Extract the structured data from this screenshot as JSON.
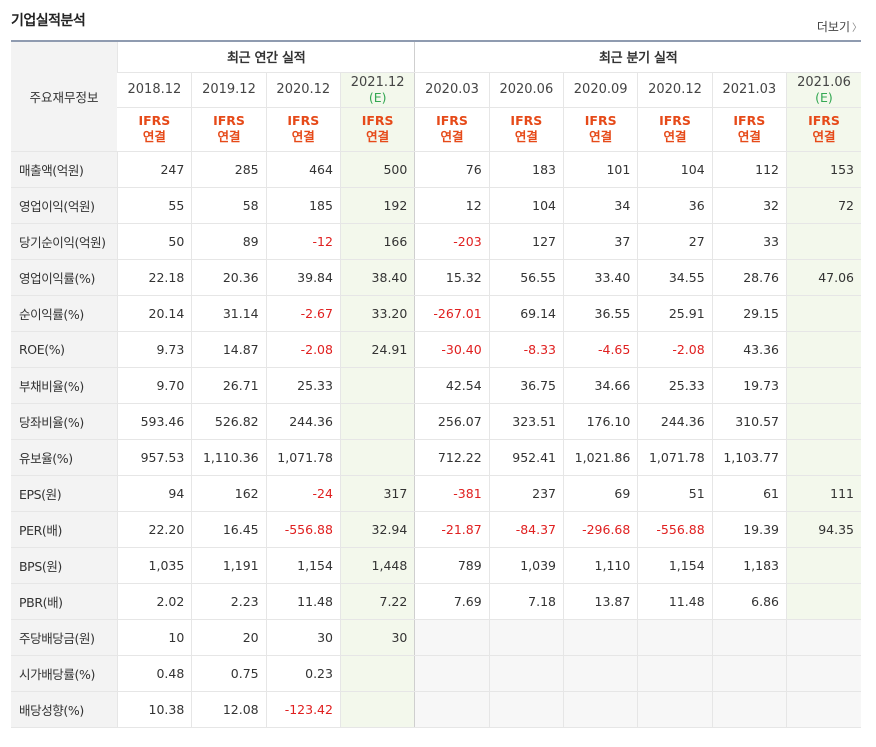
{
  "title": "기업실적분석",
  "more_label": "더보기",
  "header": {
    "row_label": "주요재무정보",
    "group_annual": "최근 연간 실적",
    "group_quarter": "최근 분기 실적",
    "periods": [
      {
        "label": "2018.12",
        "est": ""
      },
      {
        "label": "2019.12",
        "est": ""
      },
      {
        "label": "2020.12",
        "est": ""
      },
      {
        "label": "2021.12",
        "est": "(E)"
      },
      {
        "label": "2020.03",
        "est": ""
      },
      {
        "label": "2020.06",
        "est": ""
      },
      {
        "label": "2020.09",
        "est": ""
      },
      {
        "label": "2020.12",
        "est": ""
      },
      {
        "label": "2021.03",
        "est": ""
      },
      {
        "label": "2021.06",
        "est": "(E)"
      }
    ],
    "ifrs_top": "IFRS",
    "ifrs_bottom": "연결"
  },
  "rows": [
    {
      "label": "매출액(억원)",
      "values": [
        "247",
        "285",
        "464",
        "500",
        "76",
        "183",
        "101",
        "104",
        "112",
        "153"
      ]
    },
    {
      "label": "영업이익(억원)",
      "values": [
        "55",
        "58",
        "185",
        "192",
        "12",
        "104",
        "34",
        "36",
        "32",
        "72"
      ]
    },
    {
      "label": "당기순이익(억원)",
      "values": [
        "50",
        "89",
        "-12",
        "166",
        "-203",
        "127",
        "37",
        "27",
        "33",
        ""
      ]
    },
    {
      "label": "영업이익률(%)",
      "values": [
        "22.18",
        "20.36",
        "39.84",
        "38.40",
        "15.32",
        "56.55",
        "33.40",
        "34.55",
        "28.76",
        "47.06"
      ],
      "sep": true
    },
    {
      "label": "순이익률(%)",
      "values": [
        "20.14",
        "31.14",
        "-2.67",
        "33.20",
        "-267.01",
        "69.14",
        "36.55",
        "25.91",
        "29.15",
        ""
      ]
    },
    {
      "label": "ROE(%)",
      "values": [
        "9.73",
        "14.87",
        "-2.08",
        "24.91",
        "-30.40",
        "-8.33",
        "-4.65",
        "-2.08",
        "43.36",
        ""
      ]
    },
    {
      "label": "부채비율(%)",
      "values": [
        "9.70",
        "26.71",
        "25.33",
        "",
        "42.54",
        "36.75",
        "34.66",
        "25.33",
        "19.73",
        ""
      ],
      "sep": true
    },
    {
      "label": "당좌비율(%)",
      "values": [
        "593.46",
        "526.82",
        "244.36",
        "",
        "256.07",
        "323.51",
        "176.10",
        "244.36",
        "310.57",
        ""
      ]
    },
    {
      "label": "유보율(%)",
      "values": [
        "957.53",
        "1,110.36",
        "1,071.78",
        "",
        "712.22",
        "952.41",
        "1,021.86",
        "1,071.78",
        "1,103.77",
        ""
      ]
    },
    {
      "label": "EPS(원)",
      "values": [
        "94",
        "162",
        "-24",
        "317",
        "-381",
        "237",
        "69",
        "51",
        "61",
        "111"
      ],
      "sep": true
    },
    {
      "label": "PER(배)",
      "values": [
        "22.20",
        "16.45",
        "-556.88",
        "32.94",
        "-21.87",
        "-84.37",
        "-296.68",
        "-556.88",
        "19.39",
        "94.35"
      ]
    },
    {
      "label": "BPS(원)",
      "values": [
        "1,035",
        "1,191",
        "1,154",
        "1,448",
        "789",
        "1,039",
        "1,110",
        "1,154",
        "1,183",
        ""
      ]
    },
    {
      "label": "PBR(배)",
      "values": [
        "2.02",
        "2.23",
        "11.48",
        "7.22",
        "7.69",
        "7.18",
        "13.87",
        "11.48",
        "6.86",
        ""
      ]
    },
    {
      "label": "주당배당금(원)",
      "values": [
        "10",
        "20",
        "30",
        "30",
        "",
        "",
        "",
        "",
        "",
        ""
      ],
      "sep": true,
      "grayq": true
    },
    {
      "label": "시가배당률(%)",
      "values": [
        "0.48",
        "0.75",
        "0.23",
        "",
        "",
        "",
        "",
        "",
        "",
        ""
      ],
      "grayq": true
    },
    {
      "label": "배당성향(%)",
      "values": [
        "10.38",
        "12.08",
        "-123.42",
        "",
        "",
        "",
        "",
        "",
        "",
        ""
      ],
      "grayq": true
    }
  ]
}
